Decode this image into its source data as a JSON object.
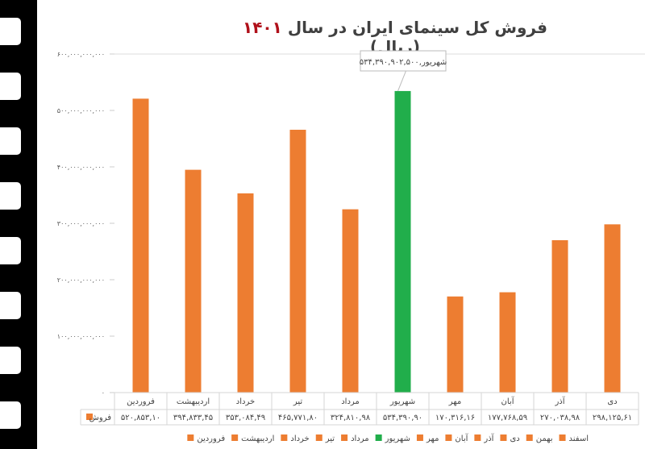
{
  "chart_data": {
    "type": "bar",
    "title_prefix": "فروش کل سینمای ایران در سال",
    "title_year": "۱۴۰۱",
    "title_suffix": "(ریال)",
    "categories": [
      "فروردین",
      "اردیبهشت",
      "خرداد",
      "تیر",
      "مرداد",
      "شهریور",
      "مهر",
      "آبان",
      "آذر",
      "دی"
    ],
    "series": [
      {
        "name": "فروش",
        "values": [
          520853100000,
          394833450000,
          353084490000,
          465771800000,
          324810980000,
          534390902500,
          170316160000,
          177768590000,
          270038980000,
          298125610000
        ]
      }
    ],
    "table_values": [
      "۵۲۰,۸۵۳,۱۰",
      "۳۹۴,۸۳۳,۴۵",
      "۳۵۳,۰۸۴,۴۹",
      "۴۶۵,۷۷۱,۸۰",
      "۳۲۴,۸۱۰,۹۸",
      "۵۳۴,۳۹۰,۹۰",
      "۱۷۰,۳۱۶,۱۶",
      "۱۷۷,۷۶۸,۵۹",
      "۲۷۰,۰۳۸,۹۸",
      "۲۹۸,۱۲۵,۶۱"
    ],
    "yticks": [
      0,
      100000000000,
      200000000000,
      300000000000,
      400000000000,
      500000000000,
      600000000000
    ],
    "ytick_labels": [
      "۰",
      "۱۰۰,۰۰۰,۰۰۰,۰۰۰",
      "۲۰۰,۰۰۰,۰۰۰,۰۰۰",
      "۳۰۰,۰۰۰,۰۰۰,۰۰۰",
      "۴۰۰,۰۰۰,۰۰۰,۰۰۰",
      "۵۰۰,۰۰۰,۰۰۰,۰۰۰",
      "۶۰۰,۰۰۰,۰۰۰,۰۰۰"
    ],
    "ylim": [
      0,
      600000000000
    ],
    "highlight_index": 5,
    "annotation": "شهریور,۵۳۴,۳۹۰,۹۰۲,۵۰۰",
    "legend": [
      "اسفند",
      "بهمن",
      "دی",
      "آذر",
      "آبان",
      "مهر",
      "شهریور",
      "مرداد",
      "تیر",
      "خرداد",
      "اردیبهشت",
      "فروردین"
    ],
    "legend_placement": "bottom",
    "colors": {
      "bar": "#ED7D31",
      "highlight": "#21AE4B",
      "title_year": "#b0101a"
    }
  }
}
